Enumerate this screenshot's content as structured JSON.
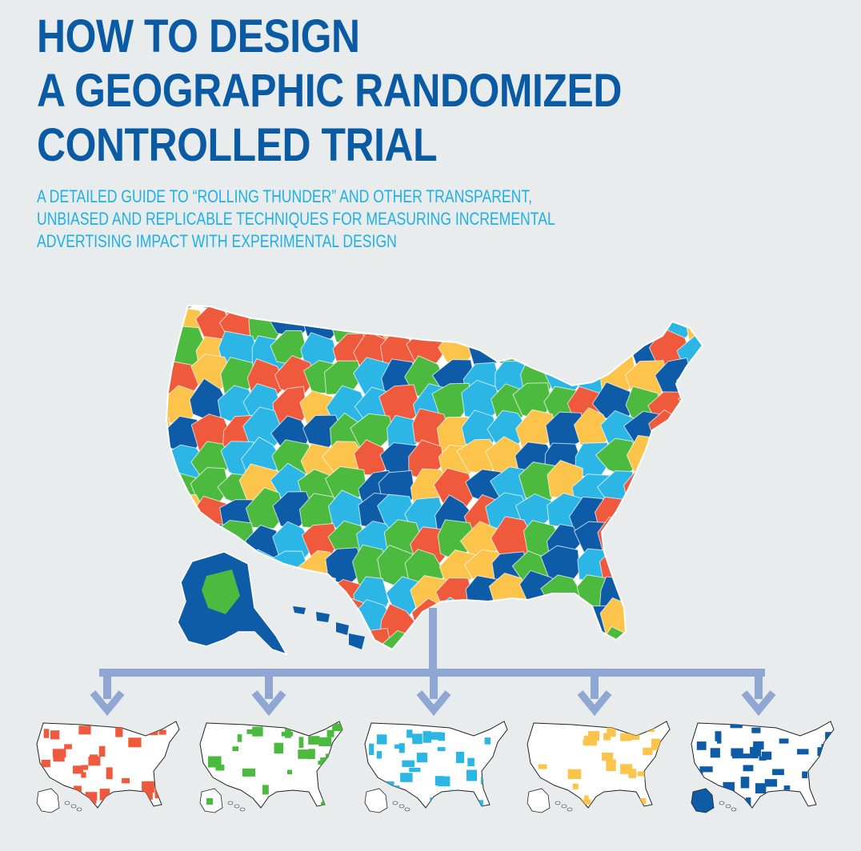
{
  "header": {
    "title_lines": [
      "HOW TO DESIGN",
      "A GEOGRAPHIC RANDOMIZED",
      "CONTROLLED TRIAL"
    ],
    "subtitle_lines": [
      "A DETAILED GUIDE TO “ROLLING THUNDER” AND OTHER TRANSPARENT,",
      "UNBIASED AND REPLICABLE TECHNIQUES FOR MEASURING INCREMENTAL",
      "ADVERTISING IMPACT WITH EXPERIMENTAL DESIGN"
    ]
  },
  "colors": {
    "background": "#e9ecec",
    "title": "#0a5aa4",
    "subtitle": "#1eb0e6",
    "connector": "#8fa7d2",
    "groups": [
      "#ef5a3c",
      "#4cba3f",
      "#2bb6e5",
      "#fcc44a",
      "#0e5ba8"
    ]
  },
  "diagram": {
    "source_map": "us-map-randomized-regions-icon",
    "group_count": 5,
    "groups": [
      {
        "name": "red-group",
        "color": "#ef5a3c"
      },
      {
        "name": "green-group",
        "color": "#4cba3f"
      },
      {
        "name": "light-blue-group",
        "color": "#2bb6e5"
      },
      {
        "name": "yellow-group",
        "color": "#fcc44a"
      },
      {
        "name": "dark-blue-group",
        "color": "#0e5ba8"
      }
    ]
  }
}
